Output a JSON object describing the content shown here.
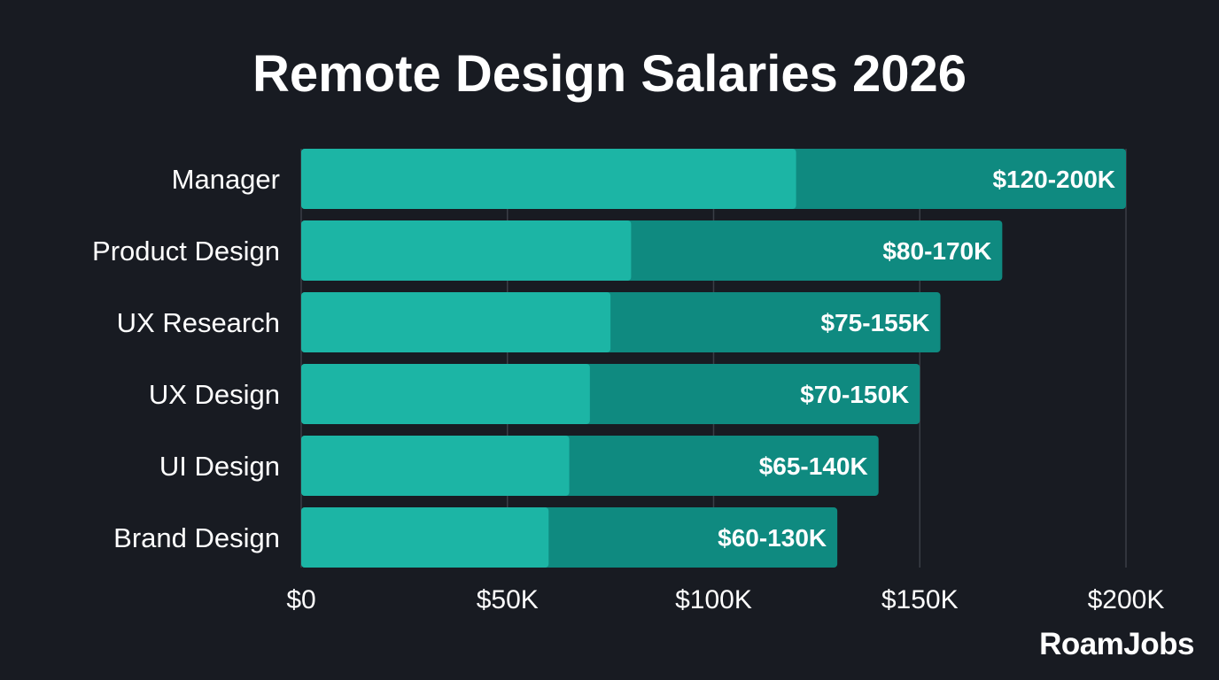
{
  "title": "Remote Design Salaries 2026",
  "logo": "RoamJobs",
  "colors": {
    "background": "#181b22",
    "min_segment": "#1cb5a5",
    "range_segment": "#0f8a80",
    "grid": "#3a3e46"
  },
  "chart_data": {
    "type": "bar",
    "orientation": "horizontal",
    "stacked_range": true,
    "title": "Remote Design Salaries 2026",
    "categories": [
      "Manager",
      "Product Design",
      "UX Research",
      "UX Design",
      "UI Design",
      "Brand Design"
    ],
    "series": [
      {
        "values_min": [
          120,
          80,
          75,
          70,
          65,
          60
        ],
        "values_max": [
          200,
          170,
          155,
          150,
          140,
          130
        ]
      }
    ],
    "data_labels": [
      "$120-200K",
      "$80-170K",
      "$75-155K",
      "$70-150K",
      "$65-140K",
      "$60-130K"
    ],
    "x_unit": "K USD",
    "xlim": [
      0,
      200
    ],
    "x_ticks": [
      0,
      50,
      100,
      150,
      200
    ],
    "x_tick_labels": [
      "$0",
      "$50K",
      "$100K",
      "$150K",
      "$200K"
    ],
    "grid": "vertical"
  }
}
